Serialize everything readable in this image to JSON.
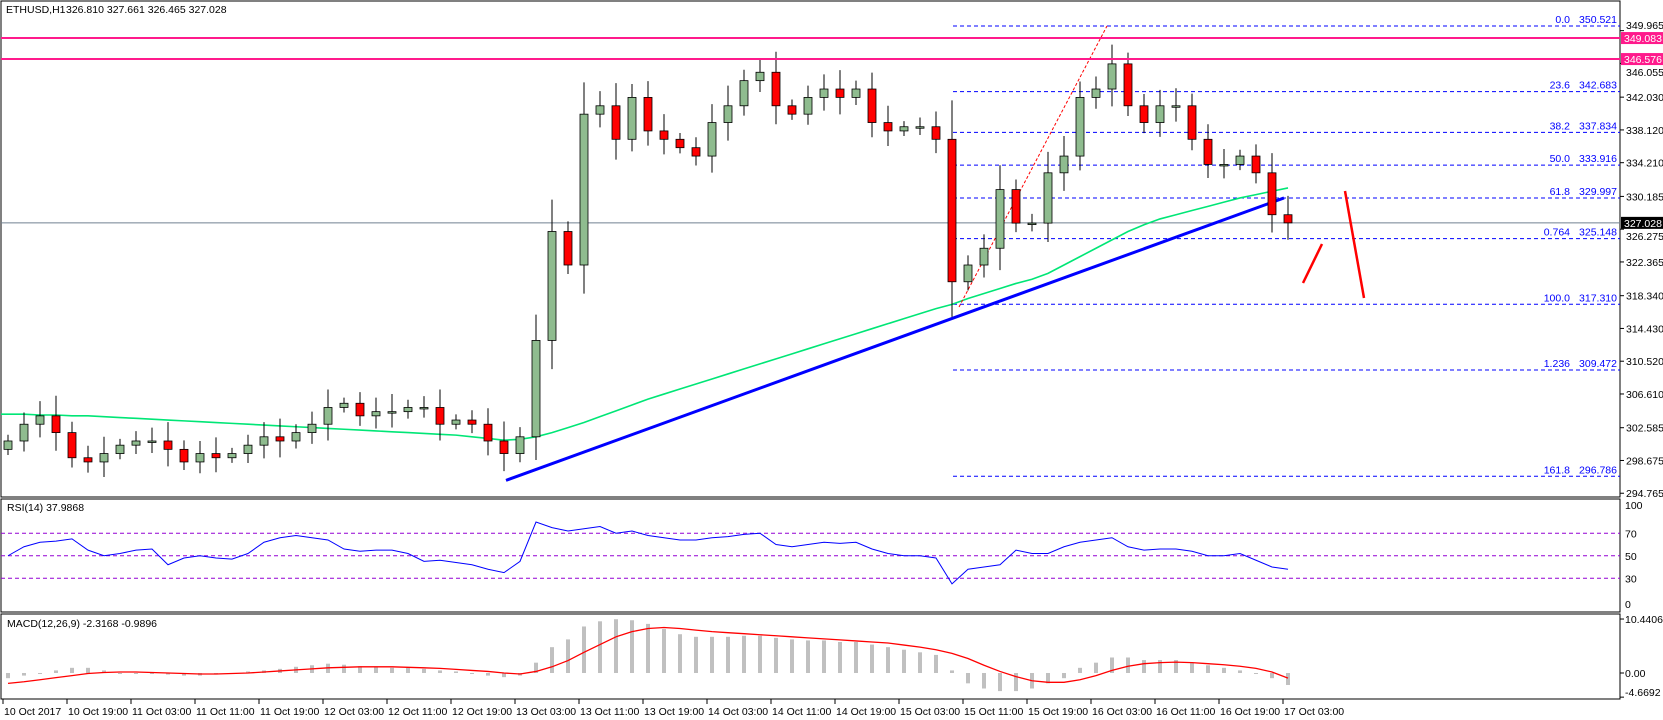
{
  "header": {
    "symbol": "ETHUSD,H1",
    "ohlc": "326.810 327.661 326.465 327.028"
  },
  "rsi_label": "RSI(14) 37.9868",
  "macd_label": "MACD(12,26,9) -2.3168 -0.9896",
  "colors": {
    "bull": "#8fbc8f",
    "bear": "#ff0000",
    "ma": "#00e676",
    "trend": "#0000ff",
    "fib": "#0000ff",
    "resistance": "#ff1a8c",
    "rsi": "#0000ff",
    "rsi_levels": "#9400d3",
    "macd_hist": "#c0c0c0",
    "macd_signal": "#ff0000",
    "current": "#000000"
  },
  "chart_data": [
    {
      "type": "candlestick",
      "title": "ETHUSD,H1",
      "price_axis": [
        "349.965",
        "346.055",
        "342.030",
        "338.120",
        "334.210",
        "330.185",
        "326.275",
        "322.365",
        "318.340",
        "314.430",
        "310.520",
        "306.610",
        "302.585",
        "298.675",
        "294.765"
      ],
      "ylim": [
        294.765,
        352.5
      ],
      "x_labels": [
        "10 Oct 2017",
        "10 Oct 19:00",
        "11 Oct 03:00",
        "11 Oct 11:00",
        "11 Oct 19:00",
        "12 Oct 03:00",
        "12 Oct 11:00",
        "12 Oct 19:00",
        "13 Oct 03:00",
        "13 Oct 11:00",
        "13 Oct 19:00",
        "14 Oct 03:00",
        "14 Oct 11:00",
        "14 Oct 19:00",
        "15 Oct 03:00",
        "15 Oct 11:00",
        "15 Oct 19:00",
        "16 Oct 03:00",
        "16 Oct 11:00",
        "16 Oct 19:00",
        "17 Oct 03:00"
      ],
      "closes": [
        301,
        303,
        304,
        302,
        299,
        298.5,
        299.5,
        300.5,
        301,
        301,
        300,
        298.5,
        299.5,
        299,
        299.5,
        300.5,
        301.5,
        301,
        302,
        303,
        305,
        305.5,
        304,
        304.5,
        304.5,
        305,
        305,
        303,
        303.5,
        303,
        301,
        299.5,
        301.5,
        313,
        326,
        322,
        340,
        341,
        337,
        342,
        338,
        337,
        336,
        335,
        339,
        341,
        344,
        345,
        341,
        340,
        342,
        343,
        342,
        343,
        339,
        338,
        338.5,
        338.5,
        337,
        320,
        322,
        324,
        331,
        327,
        327,
        333,
        335,
        342,
        343,
        346,
        341,
        339,
        341,
        341,
        337,
        334,
        334,
        335,
        333,
        328,
        327.028
      ],
      "moving_average": [
        304.2,
        304.2,
        304.1,
        304.1,
        304,
        304,
        303.9,
        303.8,
        303.7,
        303.6,
        303.5,
        303.4,
        303.3,
        303.2,
        303.1,
        303,
        302.9,
        302.8,
        302.7,
        302.6,
        302.5,
        302.4,
        302.3,
        302.2,
        302.1,
        302,
        301.9,
        301.8,
        301.7,
        301.5,
        301.3,
        301.1,
        301.2,
        301.5,
        302,
        302.6,
        303.2,
        303.9,
        304.6,
        305.3,
        306,
        306.6,
        307.2,
        307.8,
        308.4,
        309,
        309.6,
        310.2,
        310.8,
        311.4,
        312,
        312.6,
        313.2,
        313.8,
        314.4,
        315,
        315.6,
        316.2,
        316.8,
        317.3,
        318,
        318.6,
        319.2,
        319.8,
        320.3,
        321,
        322,
        323,
        324,
        325,
        326,
        326.8,
        327.5,
        328,
        328.5,
        329,
        329.5,
        330,
        330.4,
        330.8,
        331.2
      ],
      "current_price": 327.028,
      "resistance_levels": [
        349.083,
        346.576
      ],
      "trendline": {
        "from": 296.3,
        "to": 330.0
      },
      "fibonacci": [
        {
          "level": "0.0",
          "price": "350.521"
        },
        {
          "level": "23.6",
          "price": "342.683"
        },
        {
          "level": "38.2",
          "price": "337.834"
        },
        {
          "level": "50.0",
          "price": "333.916"
        },
        {
          "level": "61.8",
          "price": "329.997"
        },
        {
          "level": "0.764",
          "price": "325.148"
        },
        {
          "level": "100.0",
          "price": "317.310"
        },
        {
          "level": "1.236",
          "price": "309.472"
        },
        {
          "level": "161.8",
          "price": "296.786"
        }
      ]
    },
    {
      "type": "line",
      "title": "RSI(14) 37.9868",
      "ticks": [
        "100",
        "70",
        "50",
        "30",
        "0"
      ],
      "levels": [
        70,
        50,
        30
      ],
      "ylim": [
        0,
        100
      ],
      "values": [
        50,
        58,
        62,
        63,
        65,
        55,
        50,
        52,
        55,
        56,
        42,
        48,
        50,
        48,
        47,
        52,
        62,
        66,
        68,
        66,
        64,
        56,
        54,
        55,
        55,
        52,
        45,
        46,
        44,
        42,
        38,
        35,
        45,
        80,
        75,
        72,
        74,
        76,
        70,
        72,
        68,
        66,
        64,
        64,
        66,
        67,
        69,
        70,
        60,
        58,
        60,
        62,
        61,
        62,
        56,
        52,
        50,
        50,
        48,
        25,
        38,
        40,
        42,
        55,
        52,
        52,
        58,
        62,
        64,
        66,
        58,
        55,
        56,
        56,
        54,
        50,
        50,
        52,
        46,
        40,
        38
      ]
    },
    {
      "type": "bar",
      "title": "MACD(12,26,9) -2.3168 -0.9896",
      "ticks": [
        "10.4406",
        "0.00",
        "-4.6692"
      ],
      "ylim": [
        -4.6692,
        10.4406
      ],
      "main": [
        -1,
        -0.5,
        0,
        0.5,
        1,
        1,
        0.5,
        0,
        0,
        0,
        -0.3,
        -0.5,
        -0.5,
        -0.3,
        0,
        0.3,
        0.5,
        0.8,
        1.2,
        1.5,
        1.8,
        1.6,
        1.3,
        1.2,
        1,
        1,
        0.8,
        0.5,
        0.3,
        0,
        -0.5,
        -0.8,
        -0.5,
        2,
        5,
        6.5,
        9,
        10,
        10.4,
        10.2,
        9.5,
        8.5,
        7.5,
        7,
        7,
        7,
        7.2,
        7.2,
        6.8,
        6.5,
        6.3,
        6.3,
        6,
        6,
        5.5,
        5,
        4.5,
        4,
        3.5,
        0.5,
        -2,
        -3,
        -3.5,
        -3.5,
        -3,
        -2,
        -1,
        1,
        2,
        3,
        3,
        2.5,
        2.5,
        2.5,
        2,
        1.5,
        1,
        0.5,
        0,
        -1,
        -2.3168
      ],
      "signal": [
        -2,
        -1.7,
        -1.3,
        -0.9,
        -0.5,
        -0.1,
        0.1,
        0.2,
        0.2,
        0.1,
        0,
        -0.1,
        -0.2,
        -0.2,
        -0.1,
        0,
        0.2,
        0.4,
        0.6,
        0.8,
        1,
        1.1,
        1.2,
        1.2,
        1.2,
        1.1,
        1,
        0.9,
        0.7,
        0.5,
        0.3,
        0,
        -0.2,
        0.3,
        1.2,
        2.4,
        4,
        5.5,
        7,
        8,
        8.6,
        8.8,
        8.6,
        8.3,
        8,
        7.8,
        7.6,
        7.4,
        7.2,
        7,
        6.8,
        6.6,
        6.4,
        6.2,
        6,
        5.8,
        5.4,
        5,
        4.5,
        3.8,
        2.8,
        1.5,
        0.3,
        -0.7,
        -1.5,
        -1.8,
        -1.8,
        -1.3,
        -0.5,
        0.5,
        1.3,
        1.8,
        2,
        2.1,
        2,
        1.8,
        1.6,
        1.3,
        0.9,
        0.2,
        -0.9896
      ]
    }
  ]
}
